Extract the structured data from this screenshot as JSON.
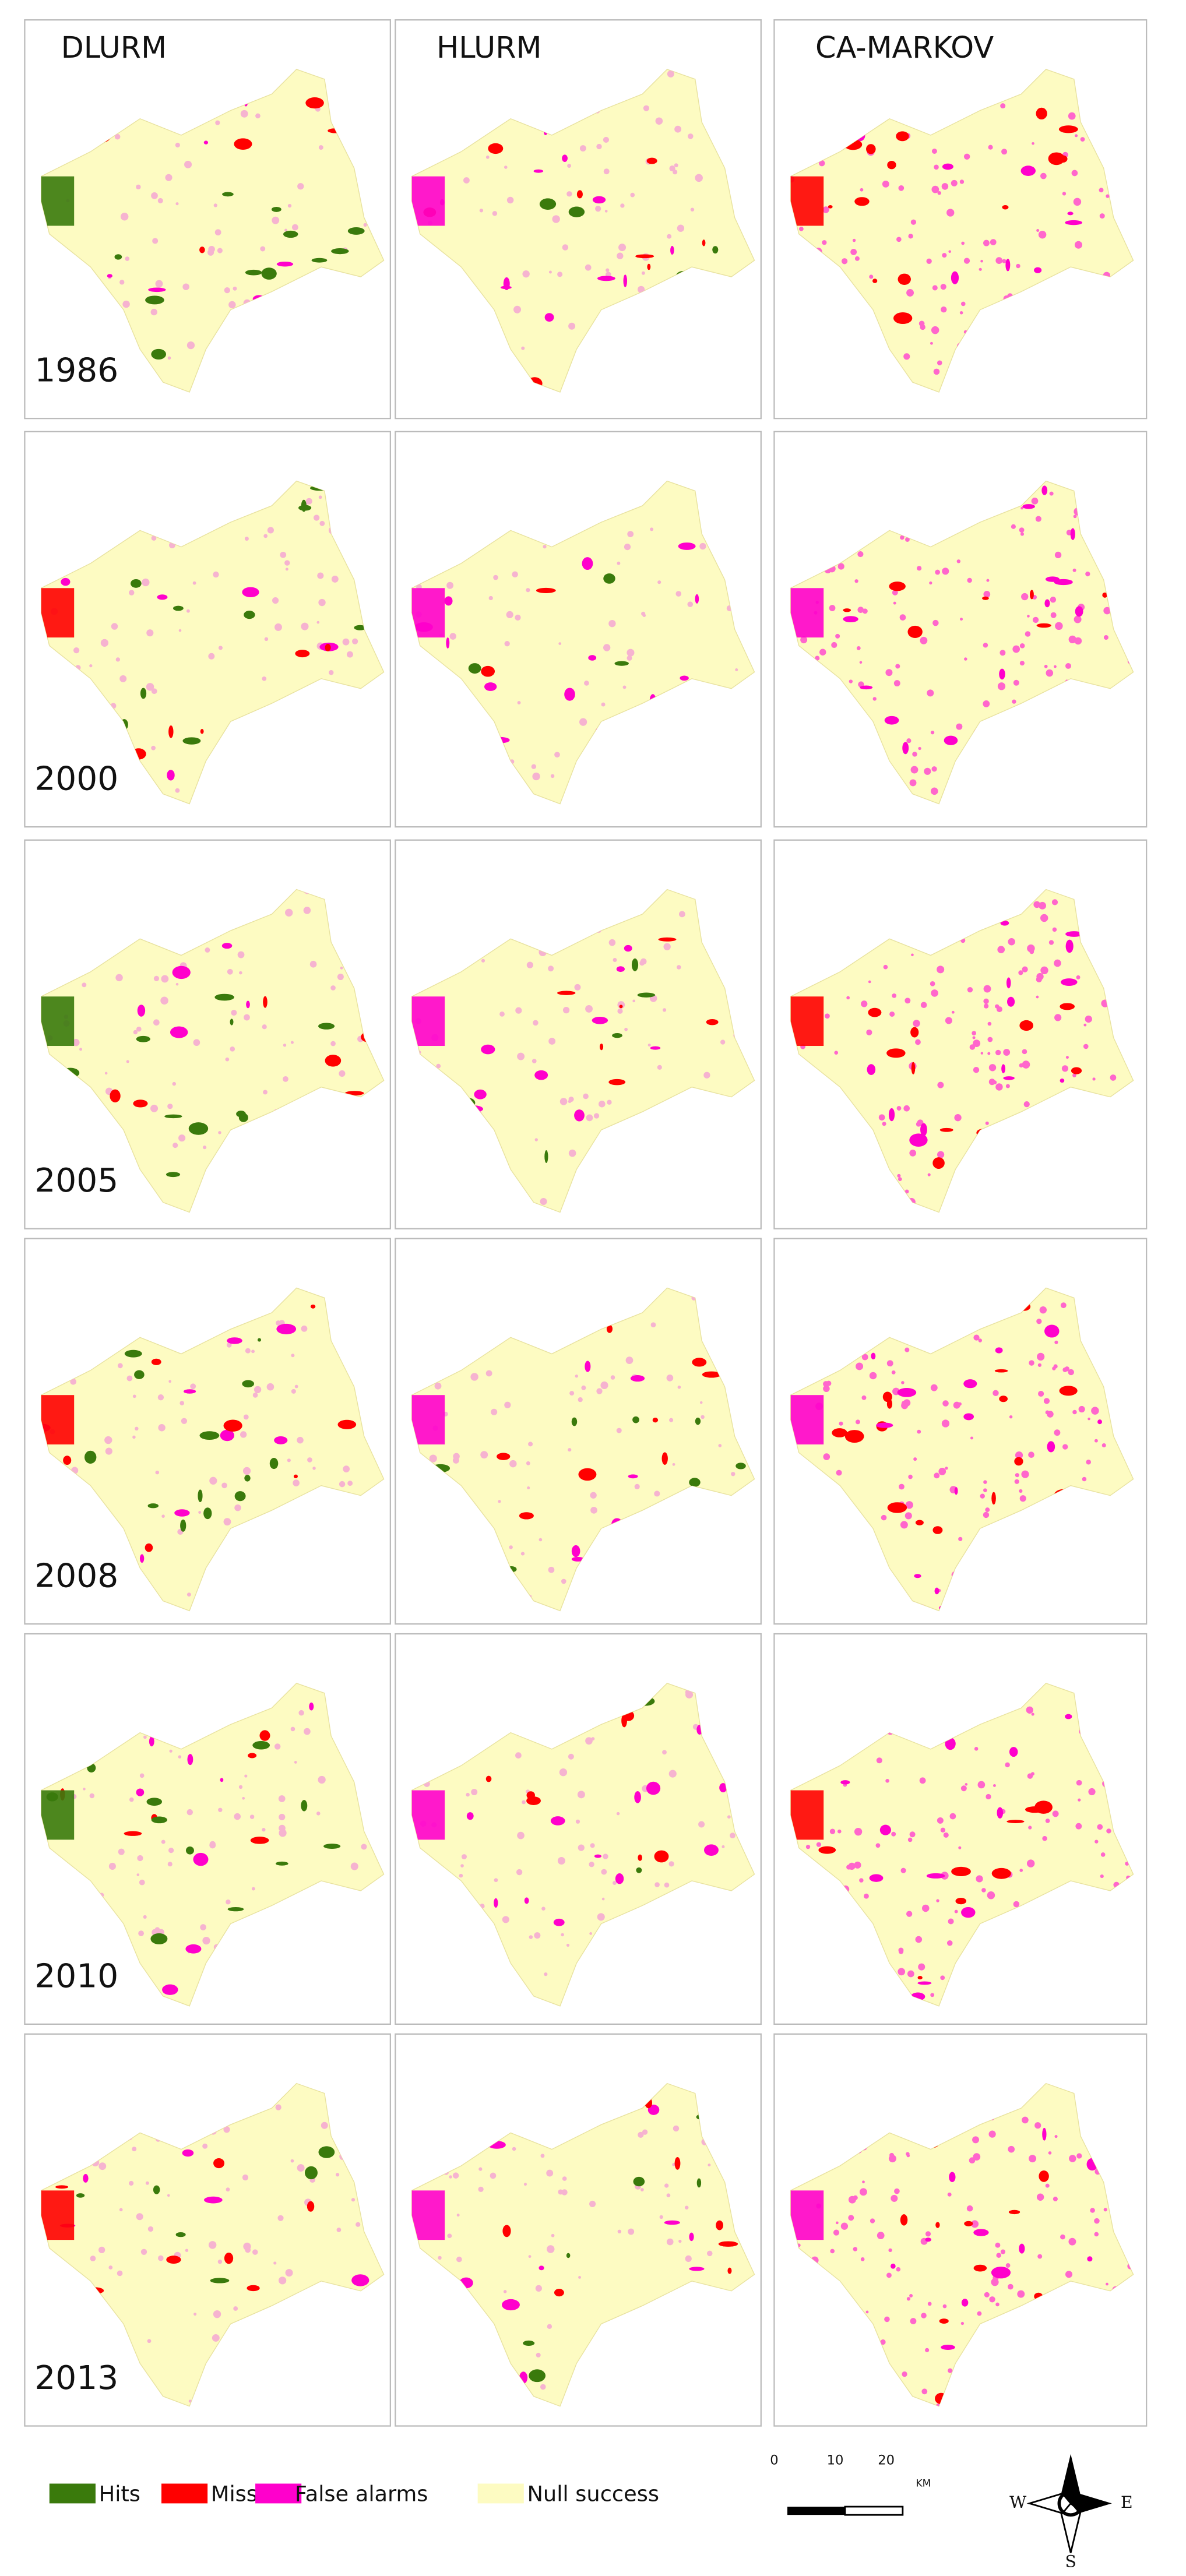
{
  "columns": [
    "DLURM",
    "HLURM",
    "CA-MARKOV"
  ],
  "years": [
    "1986",
    "2000",
    "2005",
    "2008",
    "2010",
    "2013"
  ],
  "legend": [
    {
      "label": "Hits",
      "color": "#3a7a0c"
    },
    {
      "label": "Misses",
      "color": "#ff0000"
    },
    {
      "label": "False alarms",
      "color": "#ff00cc"
    },
    {
      "label": "Null success",
      "color": "#fdfbc2"
    }
  ],
  "scale_bar": {
    "labels": [
      "0",
      "10",
      "20"
    ],
    "unit": "KM"
  },
  "compass": [
    "W",
    "E",
    "S"
  ]
}
